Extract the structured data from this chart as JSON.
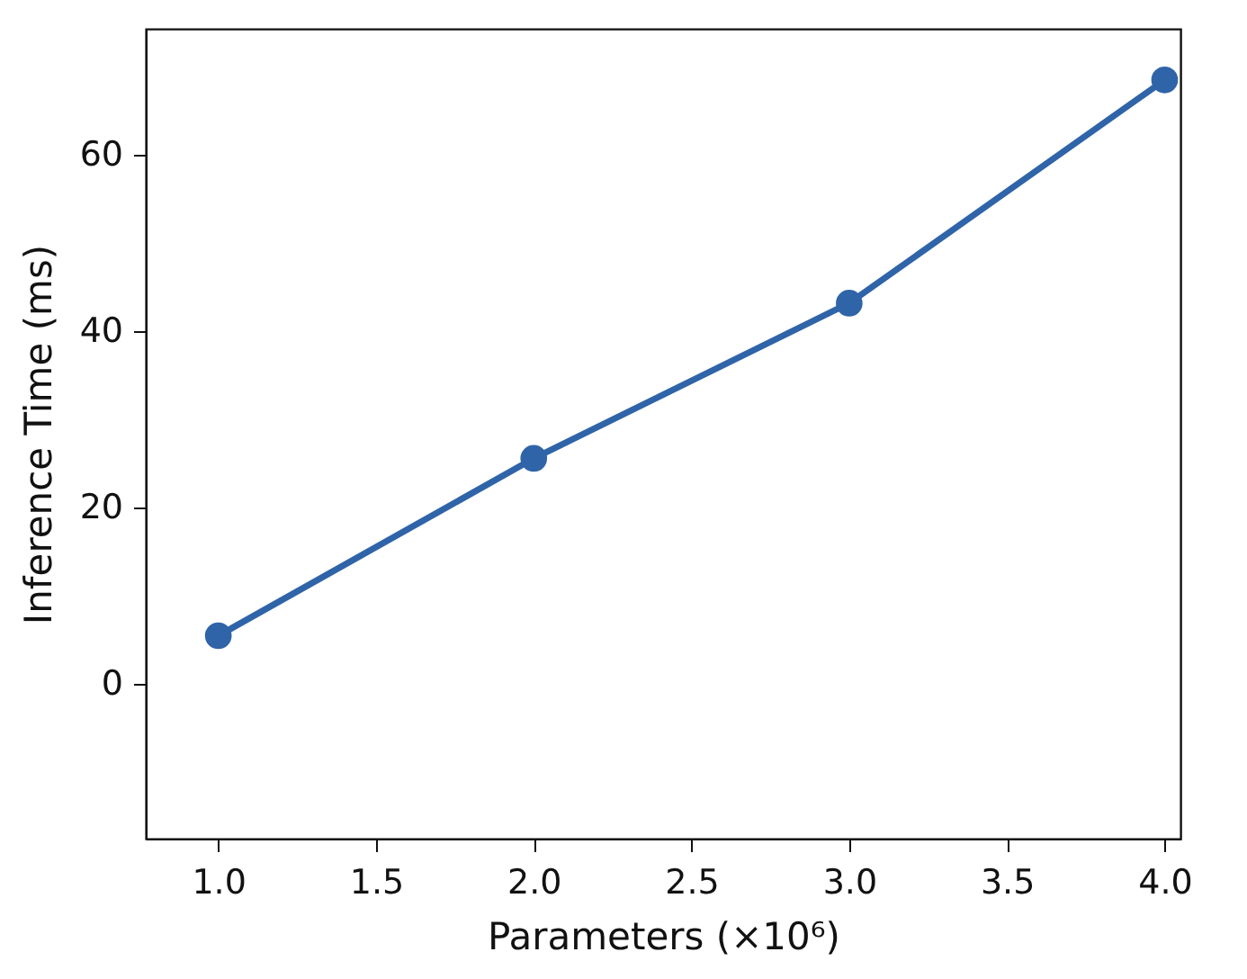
{
  "chart_data": {
    "type": "line",
    "xlabel": "Parameters (×10⁶)",
    "ylabel": "Inference Time (ms)",
    "x": [
      1.0,
      2.0,
      3.0,
      4.0
    ],
    "series": [
      {
        "color": "#2f64a8",
        "values": [
          5.4,
          25.5,
          43.1,
          68.4
        ]
      }
    ],
    "xlim": [
      0.77,
      4.05
    ],
    "xticks": [
      {
        "value": 1.0,
        "label": "1.0"
      },
      {
        "value": 1.5,
        "label": "1.5"
      },
      {
        "value": 2.0,
        "label": "2.0"
      },
      {
        "value": 2.5,
        "label": "2.5"
      },
      {
        "value": 3.0,
        "label": "3.0"
      },
      {
        "value": 3.5,
        "label": "3.5"
      },
      {
        "value": 4.0,
        "label": "4.0"
      }
    ],
    "ylim": [
      -17.6,
      74.2
    ],
    "yticks": [
      0,
      20,
      40,
      60
    ],
    "marker": "circle",
    "line_style": "solid"
  }
}
